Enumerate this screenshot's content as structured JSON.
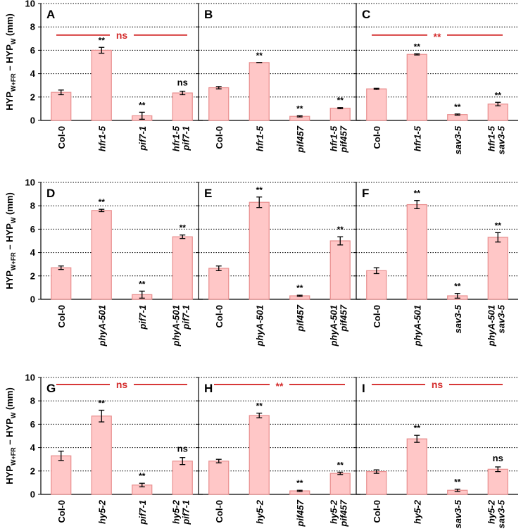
{
  "colors": {
    "bar_fill": "#ffc7c7",
    "bar_stroke": "#e88e8e",
    "comparison": "#d42c2c",
    "grid": "#000000"
  },
  "y_axis_label": {
    "main": "HYP",
    "sub1": "W+FR",
    "mid": " – HYP",
    "sub2": "W",
    "unit": " (mm)"
  },
  "chart_data": [
    {
      "type": "bar",
      "panel": "A",
      "ylim": [
        0,
        10
      ],
      "yticks": [
        "0",
        "2",
        "4",
        "6",
        "8",
        "10"
      ],
      "categories": [
        [
          "Col-0"
        ],
        [
          "hfr1-5"
        ],
        [
          "pif7-1"
        ],
        [
          "hfr1-5",
          "pif7-1"
        ]
      ],
      "italic": [
        false,
        true,
        true,
        true
      ],
      "values": [
        2.4,
        6.0,
        0.4,
        2.35
      ],
      "errors": [
        0.2,
        0.25,
        0.3,
        0.15
      ],
      "annotations": [
        "",
        "**",
        "**",
        "ns"
      ],
      "comparison": {
        "label": "ns",
        "y": 7.3
      }
    },
    {
      "type": "bar",
      "panel": "B",
      "ylim": [
        0,
        10
      ],
      "yticks": [
        "0",
        "2",
        "4",
        "6",
        "8",
        "10"
      ],
      "categories": [
        [
          "Col-0"
        ],
        [
          "hfr1-5"
        ],
        [
          "pif457"
        ],
        [
          "hfr1-5",
          "pif457"
        ]
      ],
      "italic": [
        false,
        true,
        true,
        true
      ],
      "values": [
        2.8,
        4.95,
        0.35,
        1.05
      ],
      "errors": [
        0.1,
        0.0,
        0.05,
        0.05
      ],
      "annotations": [
        "",
        "**",
        "**",
        "**"
      ],
      "comparison": null
    },
    {
      "type": "bar",
      "panel": "C",
      "ylim": [
        0,
        10
      ],
      "yticks": [
        "0",
        "2",
        "4",
        "6",
        "8",
        "10"
      ],
      "categories": [
        [
          "Col-0"
        ],
        [
          "hfr1-5"
        ],
        [
          "sav3-5"
        ],
        [
          "hfr1-5",
          "sav3-5"
        ]
      ],
      "italic": [
        false,
        true,
        true,
        true
      ],
      "values": [
        2.7,
        5.65,
        0.5,
        1.4
      ],
      "errors": [
        0.05,
        0.05,
        0.05,
        0.15
      ],
      "annotations": [
        "",
        "**",
        "**",
        "**"
      ],
      "comparison": {
        "label": "**",
        "y": 7.3
      }
    },
    {
      "type": "bar",
      "panel": "D",
      "ylim": [
        0,
        10
      ],
      "yticks": [
        "0",
        "2",
        "4",
        "6",
        "8",
        "10"
      ],
      "categories": [
        [
          "Col-0"
        ],
        [
          "phyA-501"
        ],
        [
          "pif7-1"
        ],
        [
          "phyA-501",
          "pif7-1"
        ]
      ],
      "italic": [
        false,
        true,
        true,
        true
      ],
      "values": [
        2.7,
        7.6,
        0.4,
        5.35
      ],
      "errors": [
        0.15,
        0.1,
        0.3,
        0.15
      ],
      "annotations": [
        "",
        "**",
        "**",
        "**"
      ],
      "comparison": null
    },
    {
      "type": "bar",
      "panel": "E",
      "ylim": [
        0,
        10
      ],
      "yticks": [
        "0",
        "2",
        "4",
        "6",
        "8",
        "10"
      ],
      "categories": [
        [
          "Col-0"
        ],
        [
          "phyA-501"
        ],
        [
          "pif457"
        ],
        [
          "phyA-501",
          "pif457"
        ]
      ],
      "italic": [
        false,
        true,
        true,
        true
      ],
      "values": [
        2.65,
        8.3,
        0.3,
        5.0
      ],
      "errors": [
        0.2,
        0.45,
        0.05,
        0.35
      ],
      "annotations": [
        "",
        "**",
        "**",
        "**"
      ],
      "comparison": null
    },
    {
      "type": "bar",
      "panel": "F",
      "ylim": [
        0,
        10
      ],
      "yticks": [
        "0",
        "2",
        "4",
        "6",
        "8",
        "10"
      ],
      "categories": [
        [
          "Col-0"
        ],
        [
          "phyA-501"
        ],
        [
          "sav3-5"
        ],
        [
          "phyA-501",
          "sav3-5"
        ]
      ],
      "italic": [
        false,
        true,
        true,
        true
      ],
      "values": [
        2.45,
        8.1,
        0.3,
        5.3
      ],
      "errors": [
        0.25,
        0.35,
        0.2,
        0.4
      ],
      "annotations": [
        "",
        "**",
        "**",
        "**"
      ],
      "comparison": null
    },
    {
      "type": "bar",
      "panel": "G",
      "ylim": [
        0,
        10
      ],
      "yticks": [
        "0",
        "2",
        "4",
        "6",
        "8",
        "10"
      ],
      "categories": [
        [
          "Col-0"
        ],
        [
          "hy5-2"
        ],
        [
          "pif7-1"
        ],
        [
          "hy5-2",
          "pif7-1"
        ]
      ],
      "italic": [
        false,
        true,
        true,
        true
      ],
      "values": [
        3.3,
        6.7,
        0.8,
        2.85
      ],
      "errors": [
        0.4,
        0.5,
        0.15,
        0.3
      ],
      "annotations": [
        "",
        "**",
        "**",
        "ns"
      ],
      "comparison": {
        "label": "ns",
        "y": 9.4
      }
    },
    {
      "type": "bar",
      "panel": "H",
      "ylim": [
        0,
        10
      ],
      "yticks": [
        "0",
        "2",
        "4",
        "6",
        "8",
        "10"
      ],
      "categories": [
        [
          "Col-0"
        ],
        [
          "hy5-2"
        ],
        [
          "pif457"
        ],
        [
          "hy5-2",
          "pif457"
        ]
      ],
      "italic": [
        false,
        true,
        true,
        true
      ],
      "values": [
        2.85,
        6.75,
        0.3,
        1.8
      ],
      "errors": [
        0.15,
        0.2,
        0.05,
        0.1
      ],
      "annotations": [
        "",
        "**",
        "**",
        "**"
      ],
      "comparison": {
        "label": "**",
        "y": 9.4
      }
    },
    {
      "type": "bar",
      "panel": "I",
      "ylim": [
        0,
        10
      ],
      "yticks": [
        "0",
        "2",
        "4",
        "6",
        "8",
        "10"
      ],
      "categories": [
        [
          "Col-0"
        ],
        [
          "hy5-2"
        ],
        [
          "sav3-5"
        ],
        [
          "hy5-2",
          "sav3-5"
        ]
      ],
      "italic": [
        false,
        true,
        true,
        true
      ],
      "values": [
        1.95,
        4.75,
        0.35,
        2.15
      ],
      "errors": [
        0.15,
        0.3,
        0.1,
        0.2
      ],
      "annotations": [
        "",
        "**",
        "**",
        "ns"
      ],
      "comparison": {
        "label": "ns",
        "y": 9.4
      }
    }
  ]
}
